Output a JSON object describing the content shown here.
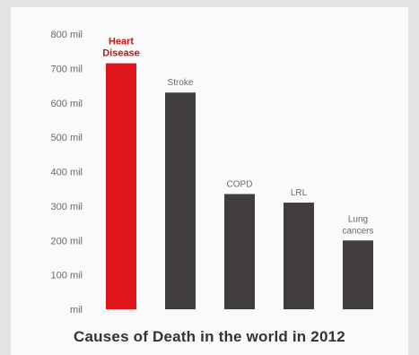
{
  "chart_data": {
    "type": "bar",
    "title": "Causes of Death in the world in 2012",
    "categories": [
      [
        "Heart",
        "Disease"
      ],
      [
        "Stroke"
      ],
      [
        "COPD"
      ],
      [
        "LRL"
      ],
      [
        "Lung",
        "cancers"
      ]
    ],
    "values": [
      715,
      630,
      335,
      310,
      200
    ],
    "y_ticks": [
      "mil",
      "100 mil",
      "200 mil",
      "300 mil",
      "400 mil",
      "500 mil",
      "600 mil",
      "700 mil",
      "800 mil"
    ],
    "ylim": [
      0,
      800
    ],
    "grid": false,
    "colors": {
      "highlight": "#e0141b",
      "bar": "#403d3c",
      "label_highlight": "#c4161c",
      "label": "#6a6a6a",
      "tick": "#6a6a6a"
    },
    "highlight_index": 0
  }
}
